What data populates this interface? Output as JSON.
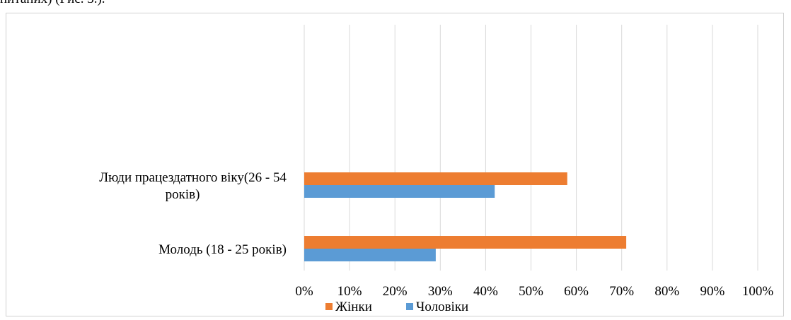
{
  "caption_fragment": "питаних) (Рис. 3.).",
  "colors": {
    "grid": "#d9d9d9",
    "series_women": "#ED7D31",
    "series_men": "#5B9BD5"
  },
  "chart_data": {
    "type": "bar",
    "orientation": "horizontal",
    "title": "",
    "xlabel": "",
    "ylabel": "",
    "xlim": [
      0,
      100
    ],
    "ticks": [
      "0%",
      "10%",
      "20%",
      "30%",
      "40%",
      "50%",
      "60%",
      "70%",
      "80%",
      "90%",
      "100%"
    ],
    "grid": true,
    "legend_position": "bottom",
    "categories": [
      {
        "lines": [
          "Люди працездатного віку(26 - 54",
          "років)"
        ]
      },
      {
        "lines": [
          "Молодь (18 - 25 років)"
        ]
      }
    ],
    "series": [
      {
        "name": "Жінки",
        "values": [
          58,
          71
        ]
      },
      {
        "name": "Чоловіки",
        "values": [
          42,
          29
        ]
      }
    ]
  }
}
